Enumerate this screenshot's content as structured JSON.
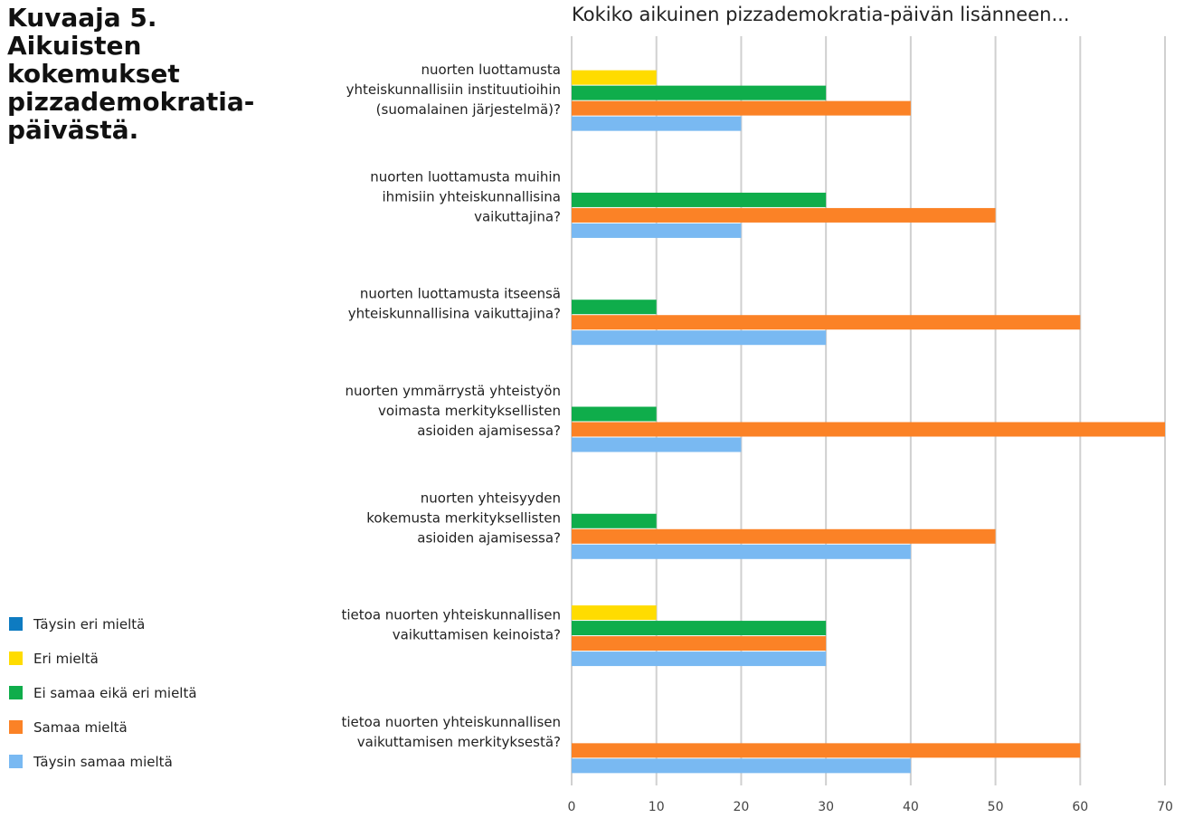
{
  "figure": {
    "heading": "Kuvaaja 5.\nAikuisten\nkokemukset\npizzademokratia-\npäivästä."
  },
  "chart_data": {
    "type": "bar",
    "orientation": "horizontal",
    "title": "Kokiko aikuinen pizzademokratia-päivän lisänneen...",
    "xlabel": "",
    "ylabel": "",
    "xlim": [
      0,
      70
    ],
    "xticks": [
      0,
      10,
      20,
      30,
      40,
      50,
      60,
      70
    ],
    "grid": true,
    "legend_position": "bottom-left",
    "categories": [
      [
        "nuorten luottamusta",
        "yhteiskunnallisiin instituutioihin",
        "(suomalainen järjestelmä)?"
      ],
      [
        "nuorten luottamusta muihin",
        "ihmisiin yhteiskunnallisina",
        "vaikuttajina?"
      ],
      [
        "nuorten luottamusta itseensä",
        "yhteiskunnallisina vaikuttajina?"
      ],
      [
        "nuorten ymmärrystä yhteistyön",
        "voimasta merkityksellisten",
        "asioiden ajamisessa?"
      ],
      [
        "nuorten yhteisyyden",
        "kokemusta merkityksellisten",
        "asioiden ajamisessa?"
      ],
      [
        "tietoa nuorten yhteiskunnallisen",
        "vaikuttamisen keinoista?"
      ],
      [
        "tietoa nuorten yhteiskunnallisen",
        "vaikuttamisen merkityksestä?"
      ]
    ],
    "series": [
      {
        "name": "Täysin eri mieltä",
        "color": "#0e7bc1",
        "values": [
          0,
          0,
          0,
          0,
          0,
          0,
          0
        ]
      },
      {
        "name": "Eri mieltä",
        "color": "#ffdc00",
        "values": [
          10,
          0,
          0,
          0,
          0,
          10,
          0
        ]
      },
      {
        "name": "Ei samaa eikä eri mieltä",
        "color": "#0fad4b",
        "values": [
          30,
          30,
          10,
          10,
          10,
          30,
          0
        ]
      },
      {
        "name": "Samaa mieltä",
        "color": "#fb8226",
        "values": [
          40,
          50,
          60,
          70,
          50,
          30,
          60
        ]
      },
      {
        "name": "Täysin samaa mieltä",
        "color": "#79b9f2",
        "values": [
          20,
          20,
          30,
          20,
          40,
          30,
          40
        ]
      }
    ]
  }
}
